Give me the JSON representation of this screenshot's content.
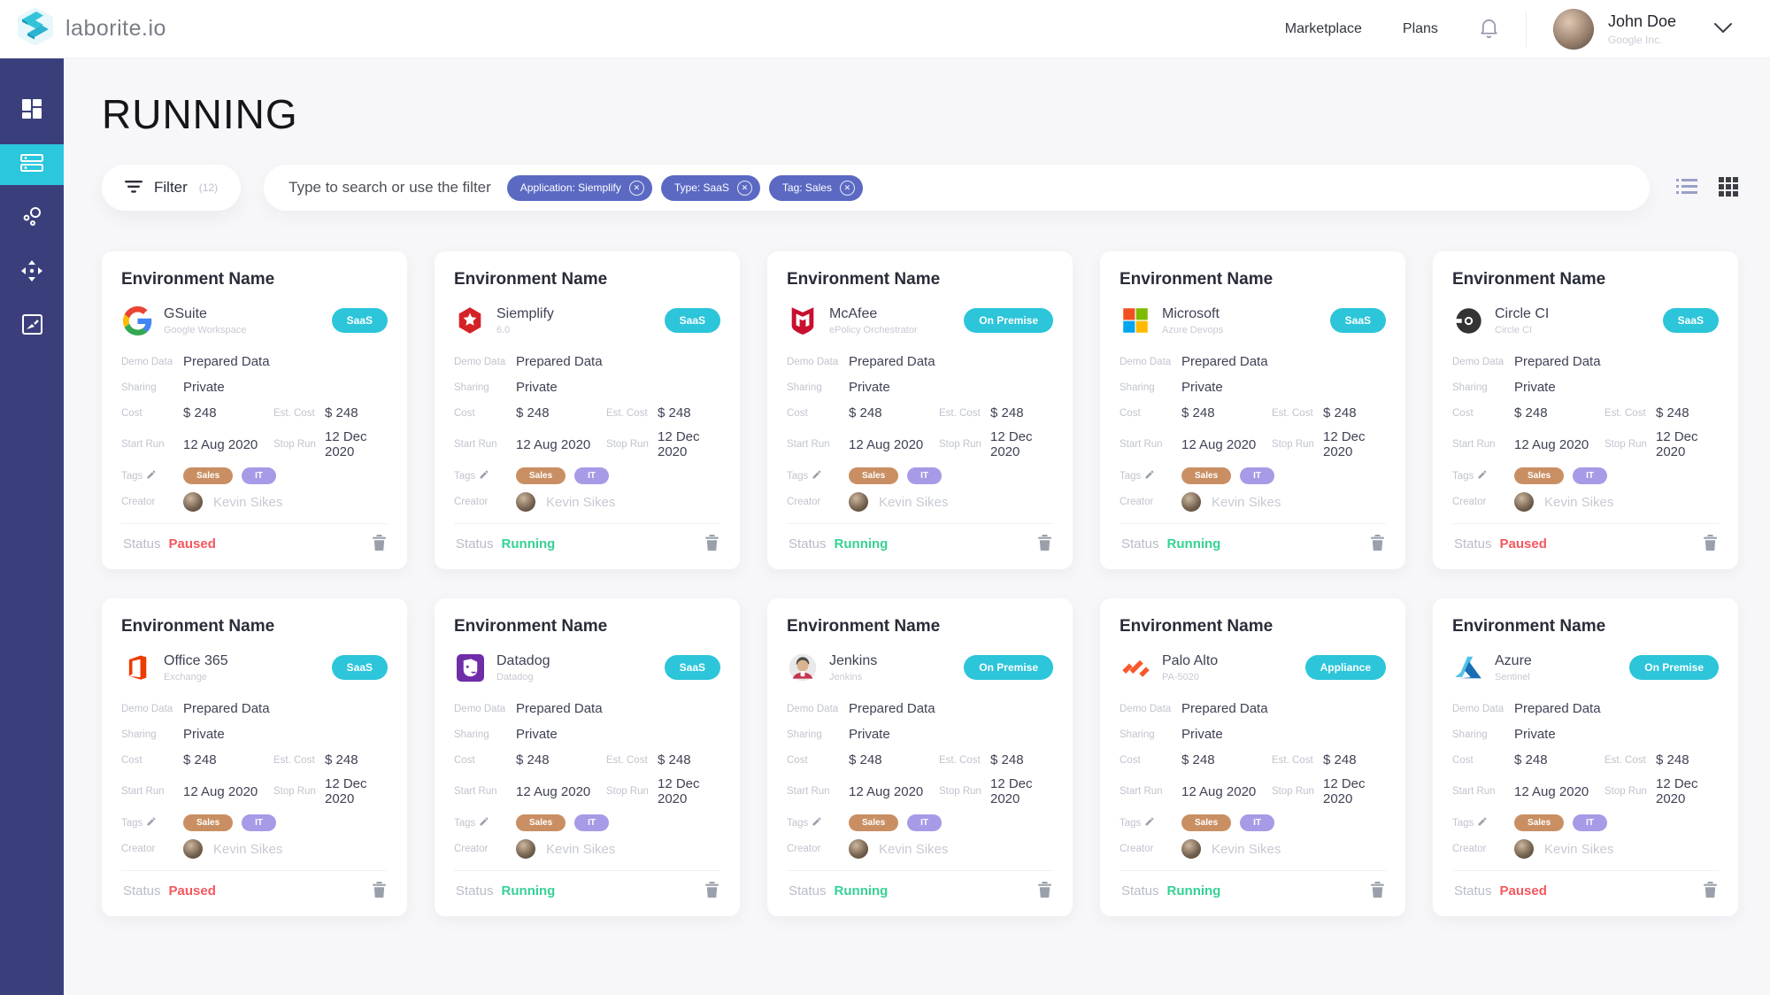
{
  "header": {
    "brand": "laborite.io",
    "nav_marketplace": "Marketplace",
    "nav_plans": "Plans",
    "user_name": "John Doe",
    "user_company": "Google Inc."
  },
  "sidebar": {
    "items": [
      {
        "name": "dashboard",
        "active": false
      },
      {
        "name": "environments",
        "active": true
      },
      {
        "name": "connections",
        "active": false
      },
      {
        "name": "move",
        "active": false
      },
      {
        "name": "media",
        "active": false
      }
    ]
  },
  "page": {
    "title": "RUNNING"
  },
  "filter": {
    "button_label": "Filter",
    "button_count": "(12)",
    "search_placeholder": "Type to search or use the filter",
    "chips": [
      {
        "label": "Application: Siemplify"
      },
      {
        "label": "Type: SaaS"
      },
      {
        "label": "Tag: Sales"
      }
    ],
    "view_active": "grid"
  },
  "labels": {
    "demo_data": "Demo Data",
    "sharing": "Sharing",
    "cost": "Cost",
    "est_cost": "Est. Cost",
    "start_run": "Start Run",
    "stop_run": "Stop Run",
    "tags": "Tags",
    "creator": "Creator",
    "status": "Status"
  },
  "card_defaults": {
    "title": "Environment Name",
    "demo_data": "Prepared Data",
    "sharing": "Private",
    "cost": "$ 248",
    "est_cost": "$ 248",
    "start_run": "12 Aug 2020",
    "stop_run": "12 Dec 2020",
    "tags": [
      "Sales",
      "IT"
    ],
    "creator": "Kevin Sikes"
  },
  "cards": [
    {
      "app": "GSuite",
      "subtitle": "Google Workspace",
      "badge": "SaaS",
      "status": "Paused",
      "icon": "gsuite"
    },
    {
      "app": "Siemplify",
      "subtitle": "6.0",
      "badge": "SaaS",
      "status": "Running",
      "icon": "siemplify"
    },
    {
      "app": "McAfee",
      "subtitle": "ePolicy Orchestrator",
      "badge": "On Premise",
      "status": "Running",
      "icon": "mcafee"
    },
    {
      "app": "Microsoft",
      "subtitle": "Azure Devops",
      "badge": "SaaS",
      "status": "Running",
      "icon": "microsoft"
    },
    {
      "app": "Circle CI",
      "subtitle": "Circle CI",
      "badge": "SaaS",
      "status": "Paused",
      "icon": "circleci"
    },
    {
      "app": "Office 365",
      "subtitle": "Exchange",
      "badge": "SaaS",
      "status": "Paused",
      "icon": "office365"
    },
    {
      "app": "Datadog",
      "subtitle": "Datadog",
      "badge": "SaaS",
      "status": "Running",
      "icon": "datadog"
    },
    {
      "app": "Jenkins",
      "subtitle": "Jenkins",
      "badge": "On Premise",
      "status": "Running",
      "icon": "jenkins"
    },
    {
      "app": "Palo Alto",
      "subtitle": "PA-5020",
      "badge": "Appliance",
      "status": "Running",
      "icon": "paloalto"
    },
    {
      "app": "Azure",
      "subtitle": "Sentinel",
      "badge": "On Premise",
      "status": "Paused",
      "icon": "azure"
    }
  ],
  "colors": {
    "sidebar_bg": "#3a3f7c",
    "accent_cyan": "#2bc7dd",
    "badge_cyan": "#2cc5d9",
    "chip_indigo": "#5b69c3",
    "status_running": "#35d294",
    "status_paused": "#f4575e",
    "tag_sales": "#c98f63",
    "tag_it": "#a79ae6"
  }
}
